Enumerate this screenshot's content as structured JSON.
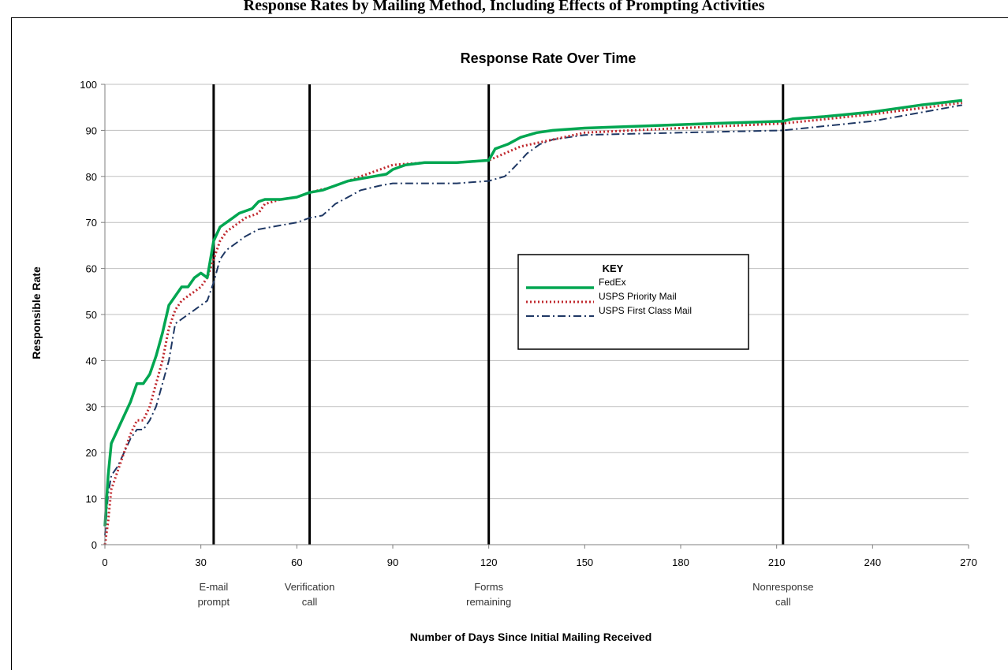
{
  "page": {
    "caption": "Response Rates by Mailing Method, Including Effects of Prompting Activities"
  },
  "chart_data": {
    "type": "line",
    "title": "Response Rate Over Time",
    "xlabel": "Number of Days Since Initial Mailing Received",
    "ylabel": "Responsible Rate",
    "xlim": [
      0,
      270
    ],
    "ylim": [
      0,
      100
    ],
    "xticks": [
      0,
      30,
      60,
      90,
      120,
      150,
      180,
      210,
      240,
      270
    ],
    "yticks": [
      0,
      10,
      20,
      30,
      40,
      50,
      60,
      70,
      80,
      90,
      100
    ],
    "grid": "horizontal",
    "legend": {
      "title": "KEY",
      "placement": "center-right"
    },
    "events": [
      {
        "day": 34,
        "label": [
          "E-mail",
          "prompt"
        ]
      },
      {
        "day": 64,
        "label": [
          "Verification",
          "call"
        ]
      },
      {
        "day": 120,
        "label": [
          "Forms",
          "remaining"
        ]
      },
      {
        "day": 212,
        "label": [
          "Nonresponse",
          "call"
        ]
      }
    ],
    "series": [
      {
        "name": "FedEx",
        "color": "#00a651",
        "style": "solid",
        "x": [
          0,
          1,
          2,
          4,
          6,
          8,
          10,
          12,
          14,
          16,
          18,
          20,
          22,
          24,
          26,
          28,
          30,
          32,
          34,
          36,
          38,
          40,
          42,
          44,
          46,
          48,
          50,
          55,
          60,
          64,
          68,
          72,
          76,
          80,
          84,
          88,
          90,
          94,
          100,
          110,
          120,
          122,
          126,
          130,
          135,
          140,
          150,
          170,
          190,
          212,
          215,
          225,
          240,
          255,
          268
        ],
        "y": [
          4,
          15,
          22,
          25,
          28,
          31,
          35,
          35,
          37,
          41,
          46,
          52,
          54,
          56,
          56,
          58,
          59,
          58,
          66,
          69,
          70,
          71,
          72,
          72.5,
          73,
          74.5,
          75,
          75,
          75.5,
          76.5,
          77,
          78,
          79,
          79.5,
          80,
          80.5,
          81.5,
          82.5,
          83,
          83,
          83.5,
          86,
          87,
          88.5,
          89.5,
          90,
          90.5,
          91,
          91.5,
          92,
          92.5,
          93,
          94,
          95.5,
          96.5
        ]
      },
      {
        "name": "USPS Priority Mail",
        "color": "#c0282d",
        "style": "dotted",
        "x": [
          0,
          1,
          2,
          4,
          6,
          8,
          10,
          12,
          14,
          16,
          18,
          20,
          22,
          24,
          26,
          28,
          30,
          32,
          34,
          36,
          38,
          40,
          42,
          44,
          46,
          48,
          50,
          55,
          60,
          64,
          70,
          80,
          90,
          100,
          110,
          120,
          125,
          130,
          140,
          150,
          180,
          212,
          240,
          268
        ],
        "y": [
          0,
          5,
          12,
          16,
          20,
          24,
          27,
          27,
          30,
          35,
          40,
          47,
          51,
          53,
          54,
          55,
          56,
          58,
          62,
          66,
          68,
          69,
          70,
          71,
          71.5,
          72,
          74,
          75,
          75.5,
          76.5,
          77.5,
          80,
          82.5,
          83,
          83,
          83.5,
          85,
          86.5,
          88,
          89.5,
          90.5,
          91.5,
          93.5,
          96
        ]
      },
      {
        "name": "USPS First Class Mail",
        "color": "#1f3864",
        "style": "dashdot",
        "x": [
          0,
          1,
          2,
          4,
          6,
          8,
          10,
          12,
          14,
          16,
          18,
          20,
          22,
          24,
          26,
          28,
          30,
          32,
          34,
          36,
          38,
          40,
          44,
          48,
          52,
          56,
          60,
          64,
          68,
          72,
          76,
          80,
          86,
          90,
          100,
          110,
          120,
          125,
          128,
          132,
          136,
          140,
          150,
          180,
          212,
          240,
          268
        ],
        "y": [
          2,
          11,
          15,
          17,
          20,
          23,
          25,
          25,
          27,
          30,
          35,
          40,
          48,
          49,
          50,
          51,
          52,
          53,
          57,
          62,
          64,
          65,
          67,
          68.5,
          69,
          69.5,
          70,
          71,
          71.5,
          74,
          75.5,
          77,
          78,
          78.5,
          78.5,
          78.5,
          79,
          80,
          82,
          85,
          87,
          88,
          89,
          89.5,
          90,
          92,
          95.5
        ]
      }
    ]
  }
}
